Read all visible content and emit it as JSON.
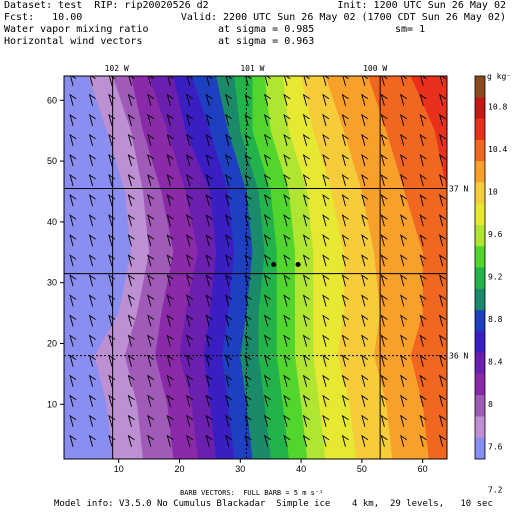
{
  "header": {
    "dataset": "Dataset: test  RIP: rip20020526 d2",
    "init": "Init: 1200 UTC Sun 26 May 02",
    "fcst": "Fcst:   10.00",
    "valid": "Valid: 2200 UTC Sun 26 May 02 (1700 CDT Sun 26 May 02)",
    "field1": "Water vapor mixing ratio",
    "field1_level": "at sigma = 0.985",
    "field1_sm": "sm= 1",
    "field2": "Horizontal wind vectors",
    "field2_level": "at sigma = 0.963"
  },
  "footer": {
    "barb_note": "BARB VECTORS:  FULL BARB = 5 m s⁻¹",
    "model_info": "Model info: V3.5.0 No Cumulus Blackadar  Simple ice    4 km,  29 levels,   10 sec"
  },
  "colorbar": {
    "unit_label": "g kg⁻¹",
    "tick_labels": [
      "10.8",
      "10.4",
      "10",
      "9.6",
      "9.2",
      "8.8",
      "8.4",
      "8",
      "7.6",
      "7.2"
    ],
    "colors": [
      "#8b4a1e",
      "#c21a16",
      "#e8301c",
      "#f2671f",
      "#f8a02a",
      "#f7cc3a",
      "#e6e832",
      "#b0e632",
      "#52d62e",
      "#22b34a",
      "#1a8a6a",
      "#1e3fbf",
      "#3b1ec2",
      "#6a1faf",
      "#8a2aa8",
      "#a05ab8",
      "#bd8fd3",
      "#8a8ef0"
    ]
  },
  "map_labels": {
    "lon": [
      "102 W",
      "101 W",
      "100 W"
    ],
    "lat": [
      "37 N",
      "36 N"
    ]
  },
  "chart_data": {
    "type": "heatmap",
    "title": "Water vapor mixing ratio",
    "x_ticks": [
      10,
      20,
      30,
      40,
      50,
      60
    ],
    "y_ticks": [
      10,
      20,
      30,
      40,
      50,
      60
    ],
    "xlim": [
      1,
      64
    ],
    "ylim": [
      1,
      64
    ],
    "colorbar_range_g_per_kg": [
      7.0,
      11.0
    ],
    "contour_interval_g_per_kg": 0.2,
    "gradient_profile": [
      {
        "y": 64,
        "boundaries_x": [
          5,
          9,
          12,
          15,
          19,
          22,
          26,
          29,
          32,
          34,
          37,
          40,
          44,
          51,
          58
        ]
      },
      {
        "y": 55,
        "boundaries_x": [
          8,
          12,
          14,
          18,
          21,
          25,
          28,
          30,
          32,
          35,
          38,
          42,
          47,
          54,
          62
        ]
      },
      {
        "y": 45,
        "boundaries_x": [
          11,
          14,
          17,
          21,
          25,
          28,
          31,
          33,
          35,
          38,
          41,
          45,
          50,
          57,
          64
        ]
      },
      {
        "y": 35,
        "boundaries_x": [
          12,
          15,
          19,
          23,
          26,
          29,
          32,
          34,
          36,
          39,
          42,
          47,
          52,
          60,
          64
        ]
      },
      {
        "y": 25,
        "boundaries_x": [
          10,
          13,
          17,
          21,
          25,
          28,
          31,
          33,
          36,
          39,
          42,
          47,
          53,
          60,
          64
        ]
      },
      {
        "y": 18,
        "boundaries_x": [
          6,
          11,
          16,
          20,
          24,
          27,
          30,
          33,
          36,
          39,
          42,
          46,
          52,
          58,
          64
        ]
      },
      {
        "y": 10,
        "boundaries_x": [
          8,
          13,
          18,
          22,
          25,
          28,
          31,
          34,
          37,
          40,
          43,
          48,
          54,
          60,
          64
        ]
      },
      {
        "y": 1,
        "boundaries_x": [
          9,
          14,
          19,
          23,
          26,
          29,
          32,
          35,
          38,
          41,
          44,
          49,
          55,
          61,
          64
        ]
      }
    ],
    "markers": [
      {
        "x": 35.5,
        "y": 33
      },
      {
        "x": 39.5,
        "y": 33
      }
    ],
    "grid_lines": {
      "lon_x": [
        9,
        31,
        53
      ],
      "lat_y": [
        45.5,
        31.5,
        18
      ]
    },
    "wind_barbs": "southwesterly ~5 m/s throughout domain, drawn every 3 grid points"
  }
}
